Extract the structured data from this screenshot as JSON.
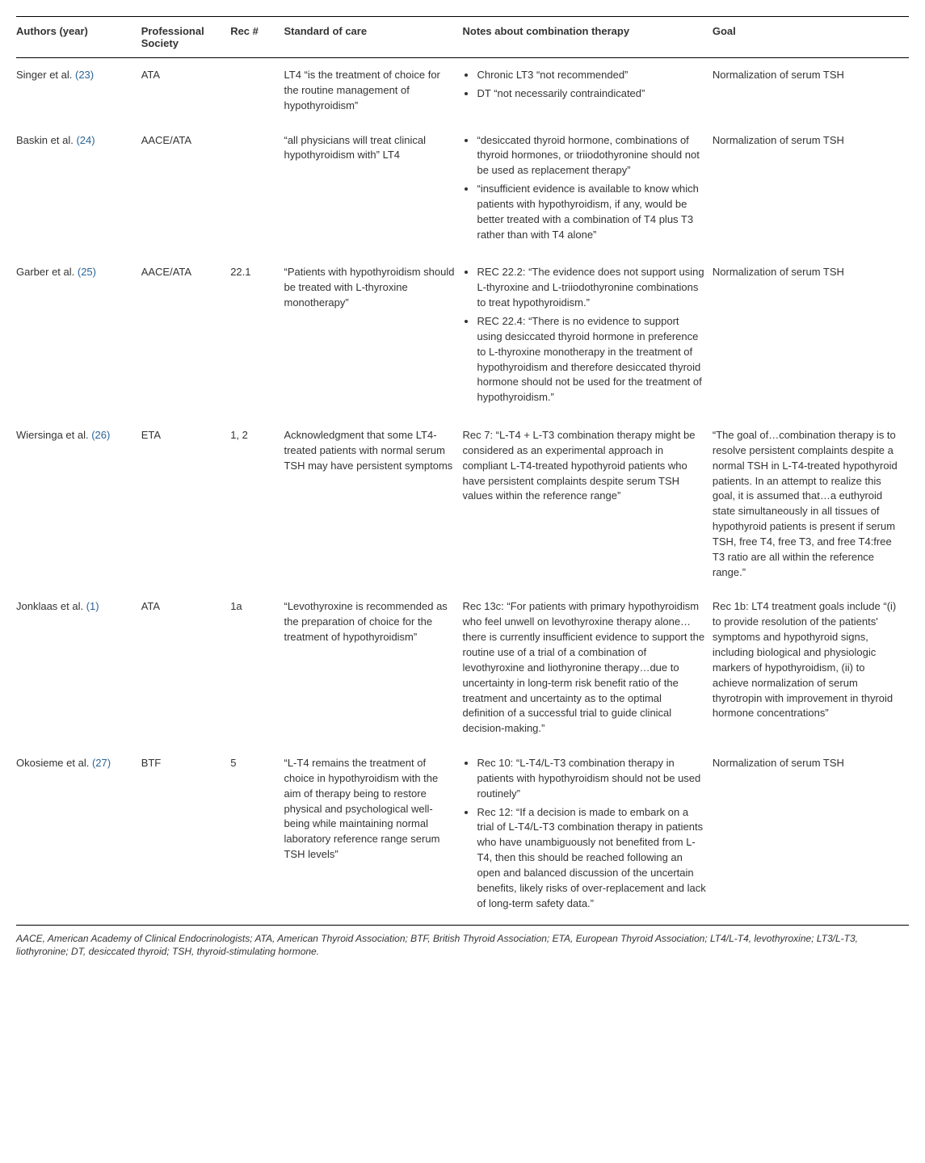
{
  "columns": [
    "Authors (year)",
    "Professional Society",
    "Rec #",
    "Standard of care",
    "Notes about combination therapy",
    "Goal"
  ],
  "rows": [
    {
      "authors": "Singer et al.",
      "ref": "(23)",
      "society": "ATA",
      "rec": "",
      "standard": "LT4 “is the treatment of choice for the routine management of hypothyroidism”",
      "notes_type": "list",
      "notes": [
        "Chronic LT3 “not recommended”",
        "DT “not necessarily contraindicated”"
      ],
      "goal": "Normalization of serum TSH"
    },
    {
      "authors": "Baskin et al.",
      "ref": "(24)",
      "society": "AACE/ATA",
      "rec": "",
      "standard": "“all physicians will treat clinical hypothyroidism with” LT4",
      "notes_type": "list",
      "notes": [
        "“desiccated thyroid hormone, combinations of thyroid hormones, or triiodothyronine should not be used as replacement therapy”",
        "“insufficient evidence is available to know which patients with hypothyroidism, if any, would be better treated with a combination of T4 plus T3 rather than with T4 alone”"
      ],
      "goal": "Normalization of serum TSH"
    },
    {
      "authors": "Garber et al.",
      "ref": "(25)",
      "society": "AACE/ATA",
      "rec": "22.1",
      "standard": "“Patients with hypothyroidism should be treated with L-thyroxine monotherapy”",
      "notes_type": "list",
      "notes": [
        "REC 22.2: “The evidence does not support using L-thyroxine and L-triiodothyronine combinations to treat hypothyroidism.”",
        "REC 22.4: “There is no evidence to support using desiccated thyroid hormone in preference to L-thyroxine monotherapy in the treatment of hypothyroidism and therefore desiccated thyroid hormone should not be used for the treatment of hypothyroidism.”"
      ],
      "goal": "Normalization of serum TSH"
    },
    {
      "authors": "Wiersinga et al.",
      "ref": "(26)",
      "society": "ETA",
      "rec": "1, 2",
      "standard": "Acknowledgment that some LT4-treated patients with normal serum TSH may have persistent symptoms",
      "notes_type": "text",
      "notes_text": "Rec 7: “L-T4 + L-T3 combination therapy might be considered as an experimental approach in compliant L-T4-treated hypothyroid patients who have persistent complaints despite serum TSH values within the reference range”",
      "goal": "“The goal of…combination therapy is to resolve persistent complaints despite a normal TSH in L-T4-treated hypothyroid patients. In an attempt to realize this goal, it is assumed that…a euthyroid state simultaneously in all tissues of hypothyroid patients is present if serum TSH, free T4, free T3, and free T4:free T3 ratio are all within the reference range.”"
    },
    {
      "authors": "Jonklaas et al.",
      "ref": "(1)",
      "society": "ATA",
      "rec": "1a",
      "standard": "“Levothyroxine is recommended as the preparation of choice for the treatment of hypothyroidism”",
      "notes_type": "text",
      "notes_text": "Rec 13c: “For patients with primary hypothyroidism who feel unwell on levothyroxine therapy alone…there is currently insufficient evidence to support the routine use of a trial of a combination of levothyroxine and liothyronine therapy…due to uncertainty in long-term risk benefit ratio of the treatment and uncertainty as to the optimal definition of a successful trial to guide clinical decision-making.”",
      "goal": "Rec 1b: LT4 treatment goals include “(i) to provide resolution of the patients' symptoms and hypothyroid signs, including biological and physiologic markers of hypothyroidism, (ii) to achieve normalization of serum thyrotropin with improvement in thyroid hormone concentrations”"
    },
    {
      "authors": "Okosieme et al.",
      "ref": "(27)",
      "society": "BTF",
      "rec": "5",
      "standard": "“L-T4 remains the treatment of choice in hypothyroidism with the aim of therapy being to restore physical and psychological well-being while maintaining normal laboratory reference range serum TSH levels”",
      "notes_type": "list",
      "notes": [
        "Rec 10: “L-T4/L-T3 combination therapy in patients with hypothyroidism should not be used routinely”",
        "Rec 12: “If a decision is made to embark on a trial of L-T4/L-T3 combination therapy in patients who have unambiguously not benefited from L-T4, then this should be reached following an open and balanced discussion of the uncertain benefits, likely risks of over-replacement and lack of long-term safety data.”"
      ],
      "goal": "Normalization of serum TSH"
    }
  ],
  "footnote": "AACE, American Academy of Clinical Endocrinologists; ATA, American Thyroid Association; BTF, British Thyroid Association; ETA, European Thyroid Association; LT4/L-T4, levothyroxine; LT3/L-T3, liothyronine; DT, desiccated thyroid; TSH, thyroid-stimulating hormone."
}
